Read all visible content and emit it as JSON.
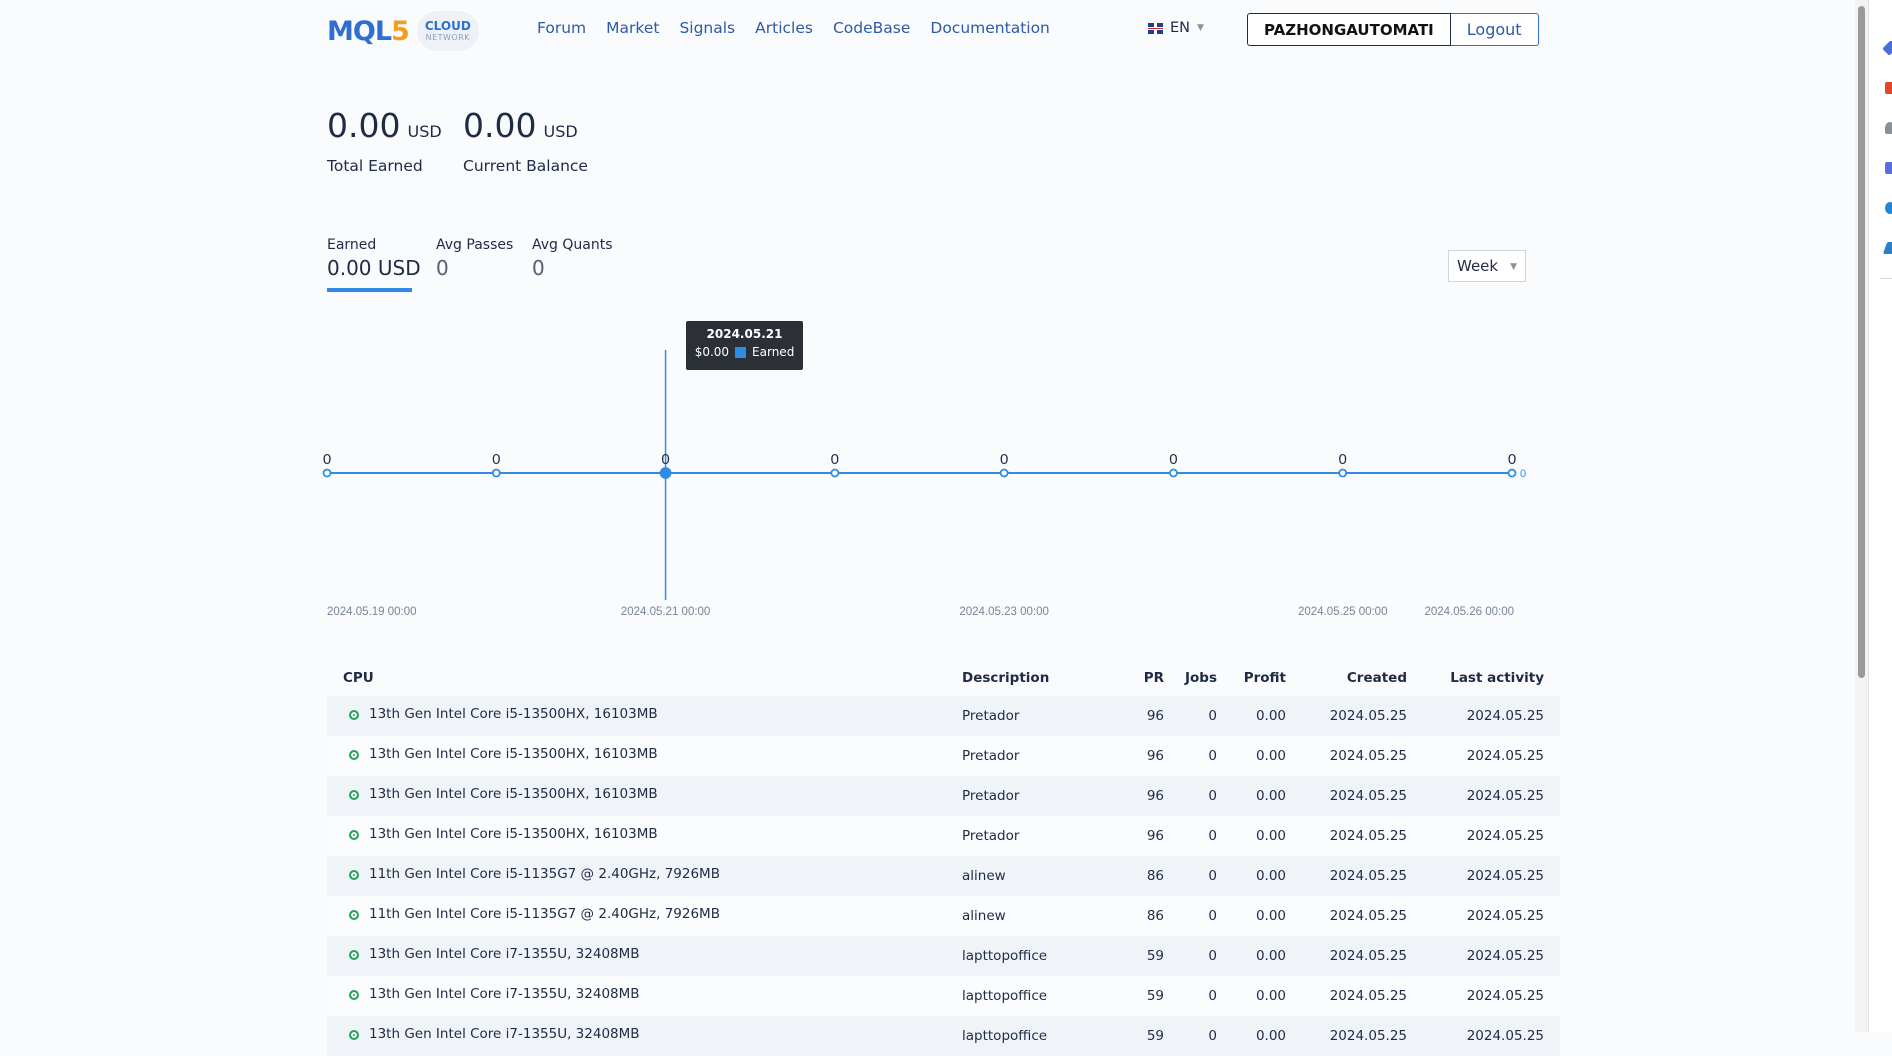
{
  "header": {
    "logo_text": "MQL",
    "logo_digit": "5",
    "cloud_line1": "CLOUD",
    "cloud_line2": "NETWORK",
    "nav": [
      "Forum",
      "Market",
      "Signals",
      "Articles",
      "CodeBase",
      "Documentation"
    ],
    "language": "EN",
    "username": "PAZHONGAUTOMATI",
    "logout_label": "Logout"
  },
  "balances": [
    {
      "amount": "0.00",
      "currency": "USD",
      "label": "Total Earned"
    },
    {
      "amount": "0.00",
      "currency": "USD",
      "label": "Current Balance"
    }
  ],
  "stats": [
    {
      "name": "Earned",
      "value": "0.00 USD"
    },
    {
      "name": "Avg Passes",
      "value": "0"
    },
    {
      "name": "Avg Quants",
      "value": "0"
    }
  ],
  "period": "Week",
  "tooltip": {
    "date": "2024.05.21",
    "value": "$0.00",
    "series": "Earned"
  },
  "chart_data": {
    "type": "line",
    "series": [
      {
        "name": "Earned",
        "values": [
          0,
          0,
          0,
          0,
          0,
          0,
          0,
          0
        ]
      }
    ],
    "x_ticks": [
      "2024.05.19 00:00",
      "2024.05.21 00:00",
      "2024.05.23 00:00",
      "2024.05.25 00:00",
      "2024.05.26 00:00"
    ],
    "x_tick_index": [
      0,
      2,
      4,
      6,
      7
    ],
    "highlight_index": 2,
    "y_right_label": "0",
    "colors": {
      "line": "#2f8be6"
    }
  },
  "table": {
    "columns": [
      "CPU",
      "Description",
      "PR",
      "Jobs",
      "Profit",
      "Created",
      "Last activity"
    ],
    "rows": [
      [
        "13th Gen Intel Core i5-13500HX, 16103MB",
        "Pretador",
        "96",
        "0",
        "0.00",
        "2024.05.25",
        "2024.05.25"
      ],
      [
        "13th Gen Intel Core i5-13500HX, 16103MB",
        "Pretador",
        "96",
        "0",
        "0.00",
        "2024.05.25",
        "2024.05.25"
      ],
      [
        "13th Gen Intel Core i5-13500HX, 16103MB",
        "Pretador",
        "96",
        "0",
        "0.00",
        "2024.05.25",
        "2024.05.25"
      ],
      [
        "13th Gen Intel Core i5-13500HX, 16103MB",
        "Pretador",
        "96",
        "0",
        "0.00",
        "2024.05.25",
        "2024.05.25"
      ],
      [
        "11th Gen Intel Core i5-1135G7 @ 2.40GHz, 7926MB",
        "alinew",
        "86",
        "0",
        "0.00",
        "2024.05.25",
        "2024.05.25"
      ],
      [
        "11th Gen Intel Core i5-1135G7 @ 2.40GHz, 7926MB",
        "alinew",
        "86",
        "0",
        "0.00",
        "2024.05.25",
        "2024.05.25"
      ],
      [
        "13th Gen Intel Core i7-1355U, 32408MB",
        "lapttopoffice",
        "59",
        "0",
        "0.00",
        "2024.05.25",
        "2024.05.25"
      ],
      [
        "13th Gen Intel Core i7-1355U, 32408MB",
        "lapttopoffice",
        "59",
        "0",
        "0.00",
        "2024.05.25",
        "2024.05.25"
      ],
      [
        "13th Gen Intel Core i7-1355U, 32408MB",
        "lapttopoffice",
        "59",
        "0",
        "0.00",
        "2024.05.25",
        "2024.05.25"
      ]
    ]
  }
}
